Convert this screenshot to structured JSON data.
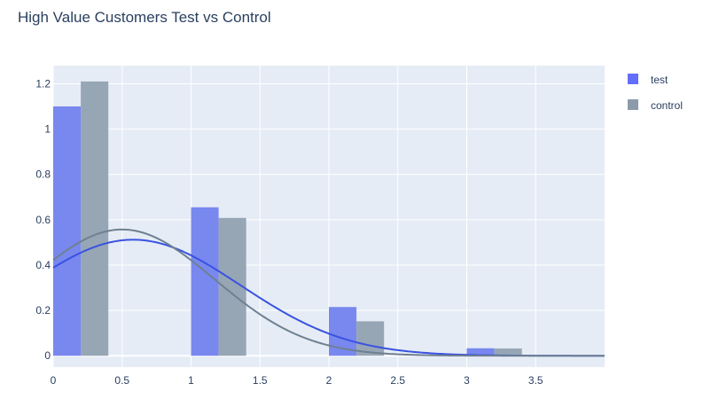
{
  "chart_data": {
    "type": "bar",
    "title": "High Value Customers Test vs Control",
    "xlabel": "",
    "ylabel": "",
    "xlim": [
      0,
      4
    ],
    "ylim": [
      -0.05,
      1.28
    ],
    "grid": true,
    "legend_position": "top-right",
    "x_ticks": [
      {
        "value": 0,
        "label": "0"
      },
      {
        "value": 0.5,
        "label": "0.5"
      },
      {
        "value": 1,
        "label": "1"
      },
      {
        "value": 1.5,
        "label": "1.5"
      },
      {
        "value": 2,
        "label": "2"
      },
      {
        "value": 2.5,
        "label": "2.5"
      },
      {
        "value": 3,
        "label": "3"
      },
      {
        "value": 3.5,
        "label": "3.5"
      }
    ],
    "y_ticks": [
      {
        "value": 0,
        "label": "0"
      },
      {
        "value": 0.2,
        "label": "0.2"
      },
      {
        "value": 0.4,
        "label": "0.4"
      },
      {
        "value": 0.6,
        "label": "0.6"
      },
      {
        "value": 0.8,
        "label": "0.8"
      },
      {
        "value": 1,
        "label": "1"
      },
      {
        "value": 1.2,
        "label": "1.2"
      }
    ],
    "series": [
      {
        "name": "test",
        "color": "#636efa",
        "bar_color": "#7888ef",
        "curve_color": "#3a52e0",
        "bars": [
          {
            "x0": 0.0,
            "x1": 0.2,
            "value": 1.1
          },
          {
            "x0": 1.0,
            "x1": 1.2,
            "value": 0.655
          },
          {
            "x0": 2.0,
            "x1": 2.2,
            "value": 0.215
          },
          {
            "x0": 3.0,
            "x1": 3.2,
            "value": 0.033
          }
        ],
        "curve": {
          "amplitude": 0.512,
          "mean": 0.58,
          "sd": 0.78
        }
      },
      {
        "name": "control",
        "color": "#8c9aab",
        "bar_color": "#97a6b5",
        "curve_color": "#6f8091",
        "bars": [
          {
            "x0": 0.2,
            "x1": 0.4,
            "value": 1.21
          },
          {
            "x0": 1.2,
            "x1": 1.4,
            "value": 0.608
          },
          {
            "x0": 2.2,
            "x1": 2.4,
            "value": 0.152
          },
          {
            "x0": 3.2,
            "x1": 3.4,
            "value": 0.032
          }
        ],
        "curve": {
          "amplitude": 0.557,
          "mean": 0.5,
          "sd": 0.67
        }
      }
    ]
  }
}
